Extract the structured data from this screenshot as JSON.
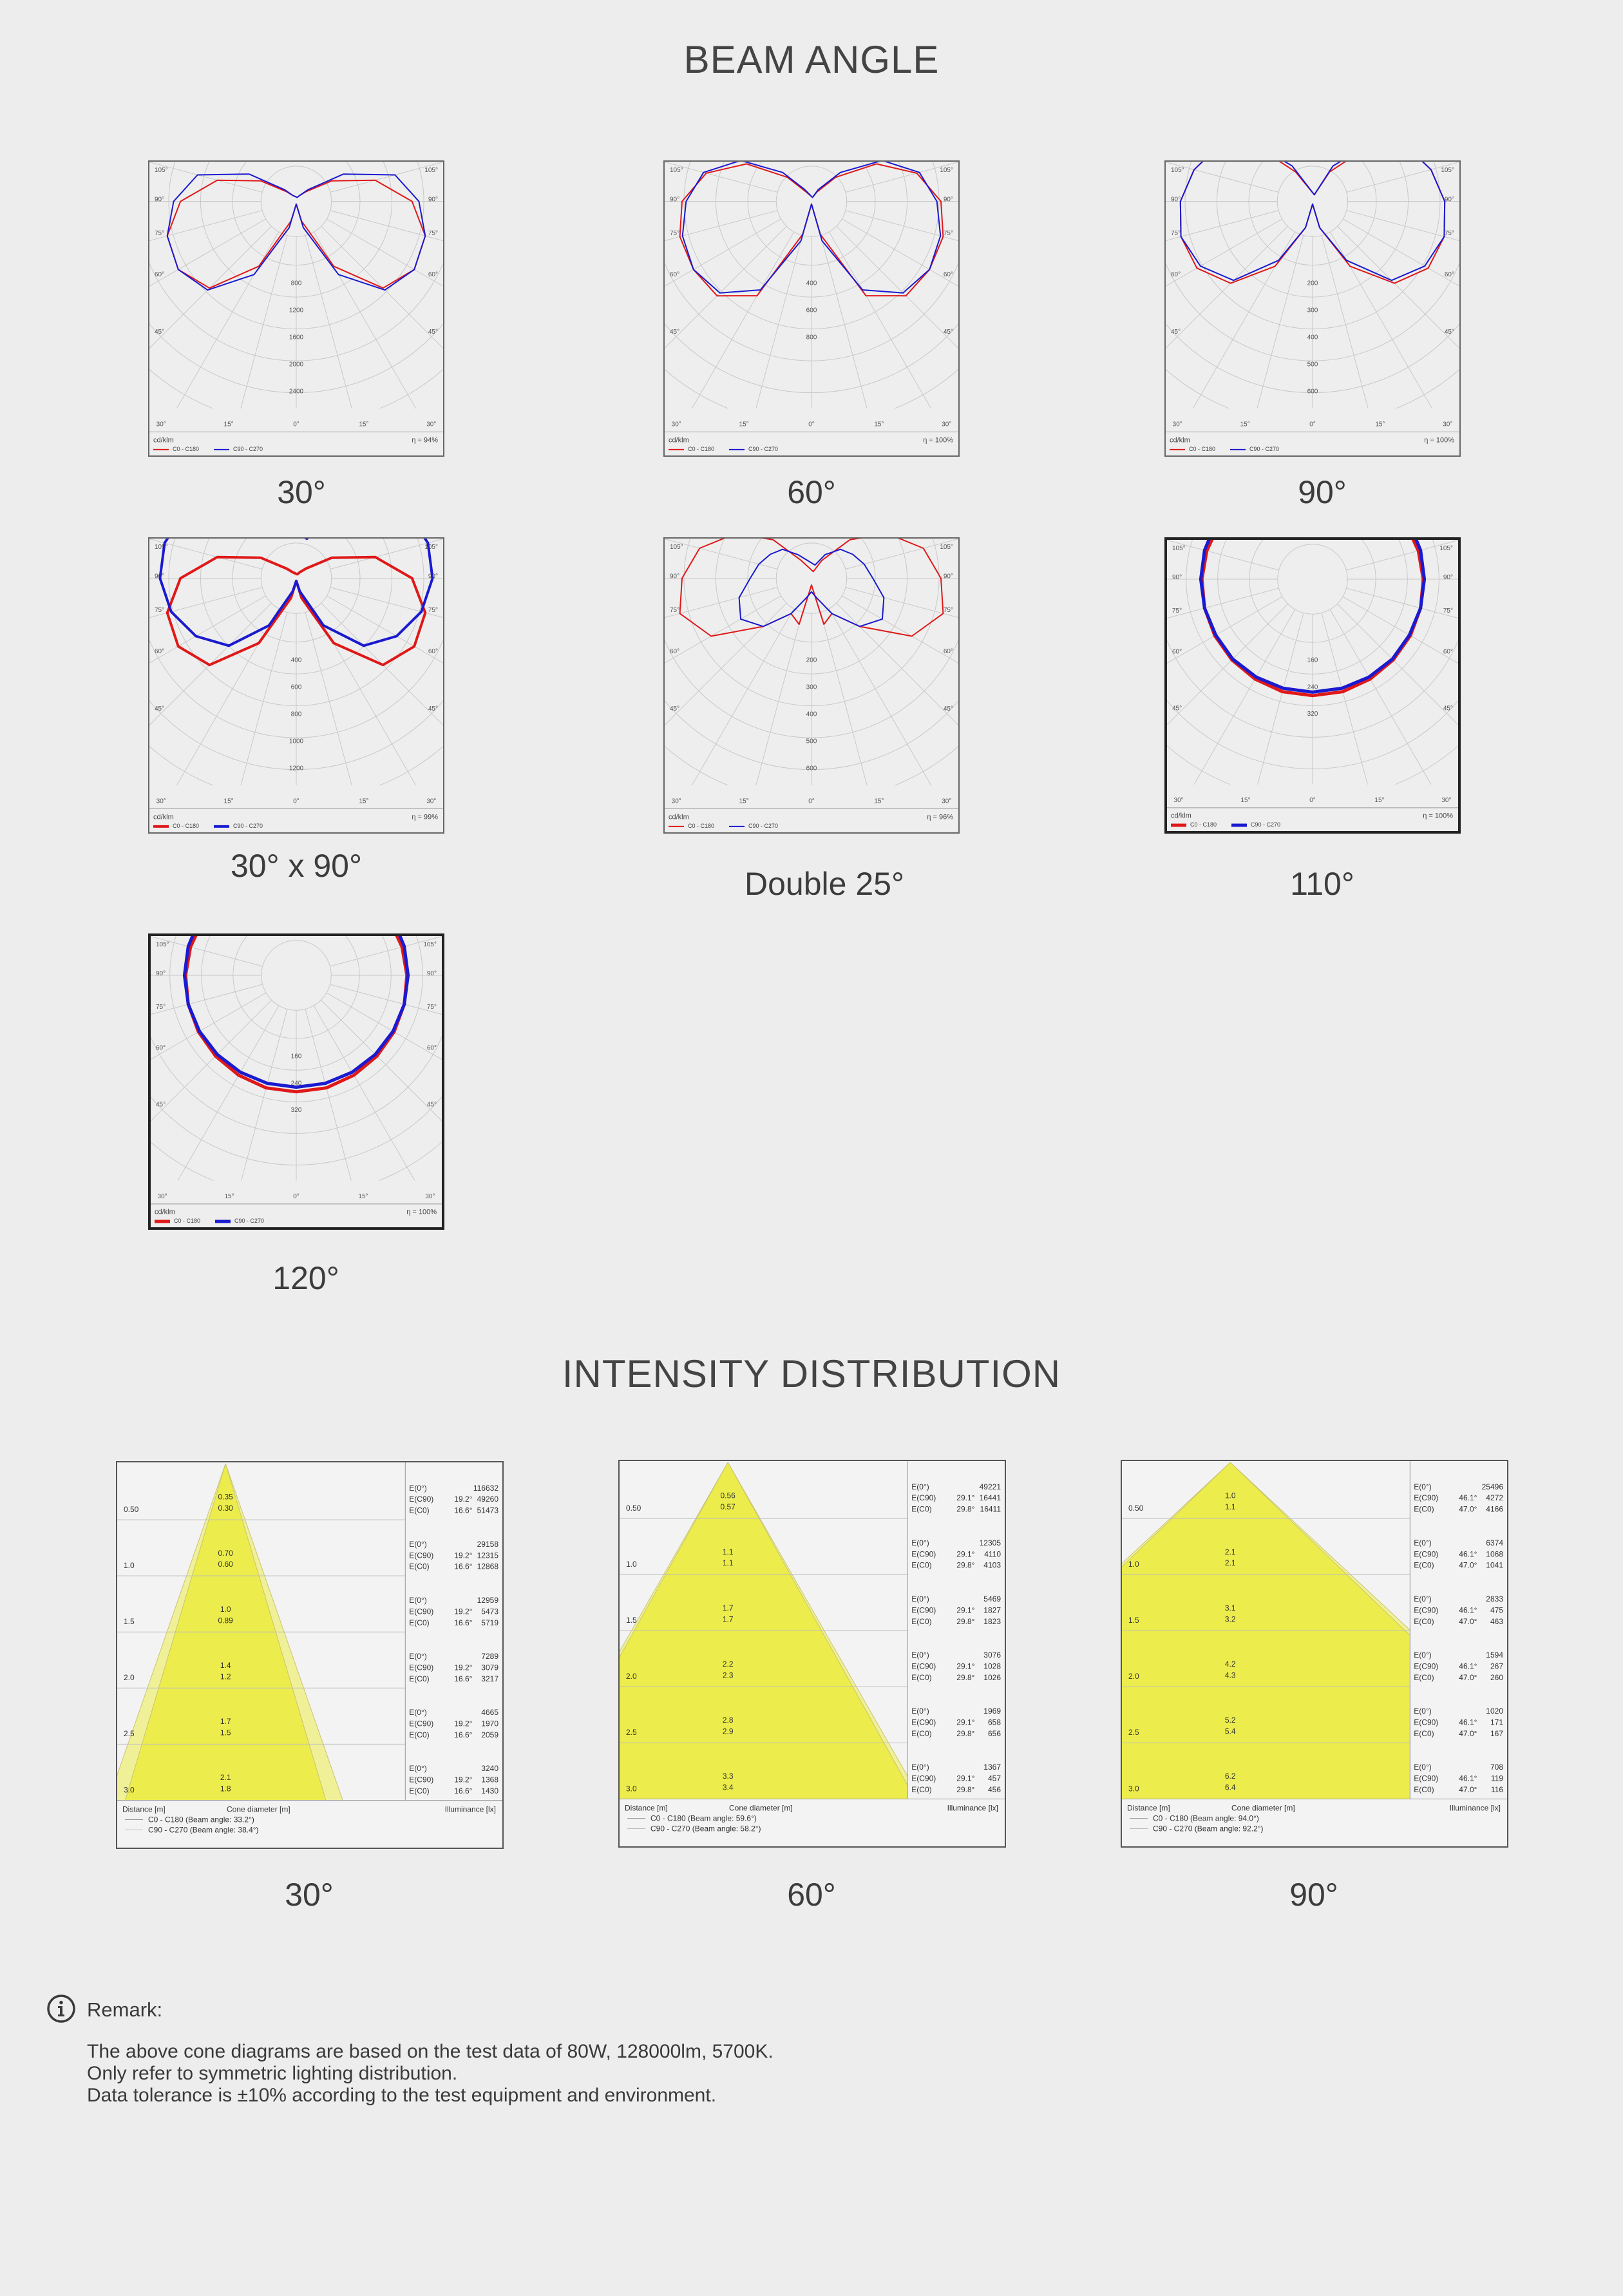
{
  "beam_heading": "BEAM ANGLE",
  "intensity_heading": "INTENSITY DISTRIBUTION",
  "colors": {
    "c0_c180": "#e01818",
    "c90_c270": "#1a1ad0",
    "cone_fill": "#ecec4c",
    "grid": "#c8c8c8"
  },
  "polar_common": {
    "unit": "cd/klm",
    "legend_c0": "C0 - C180",
    "legend_c90": "C90 - C270",
    "angle_labels": [
      "105°",
      "90°",
      "75°",
      "60°",
      "45°",
      "30°",
      "15°",
      "0°",
      "15°",
      "30°",
      "45°",
      "60°",
      "75°",
      "90°",
      "105°"
    ]
  },
  "polar_diagrams": [
    {
      "label": "30°",
      "efficiency": "η = 94%",
      "rings": [
        "800",
        "1200",
        "1600",
        "2000",
        "2400"
      ],
      "bold": false
    },
    {
      "label": "60°",
      "efficiency": "η = 100%",
      "rings": [
        "400",
        "600",
        "800"
      ],
      "bold": false
    },
    {
      "label": "90°",
      "efficiency": "η = 100%",
      "rings": [
        "200",
        "300",
        "400",
        "500",
        "600"
      ],
      "bold": false
    },
    {
      "label": "30° x 90°",
      "efficiency": "η = 99%",
      "rings": [
        "400",
        "600",
        "800",
        "1000",
        "1200"
      ],
      "bold": false
    },
    {
      "label": "Double 25°",
      "efficiency": "η = 96%",
      "rings": [
        "200",
        "300",
        "400",
        "500",
        "600"
      ],
      "bold": false
    },
    {
      "label": "110°",
      "efficiency": "η = 100%",
      "rings": [
        "160",
        "240",
        "320"
      ],
      "bold": true
    },
    {
      "label": "120°",
      "efficiency": "η = 100%",
      "rings": [
        "160",
        "240",
        "320"
      ],
      "bold": true
    }
  ],
  "cone_common": {
    "distance_header": "Distance [m]",
    "diameter_header": "Cone diameter [m]",
    "illuminance_header": "Illuminance [lx]",
    "row_distances": [
      "0.50",
      "1.0",
      "1.5",
      "2.0",
      "2.5",
      "3.0"
    ],
    "e_labels": [
      "E(0°)",
      "E(C90)",
      "E(C0)"
    ]
  },
  "cone_diagrams": [
    {
      "label": "30°",
      "legend_c0": "C0 - C180 (Beam angle: 33.2°)",
      "legend_c90": "C90 - C270 (Beam angle: 38.4°)",
      "half_angles": [
        16.6,
        19.2
      ],
      "rows": [
        {
          "d1": "0.35",
          "d2": "0.30",
          "e0": "116632",
          "a90": "19.2°",
          "e90": "49260",
          "a0": "16.6°",
          "ec0": "51473"
        },
        {
          "d1": "0.70",
          "d2": "0.60",
          "e0": "29158",
          "a90": "19.2°",
          "e90": "12315",
          "a0": "16.6°",
          "ec0": "12868"
        },
        {
          "d1": "1.0",
          "d2": "0.89",
          "e0": "12959",
          "a90": "19.2°",
          "e90": "5473",
          "a0": "16.6°",
          "ec0": "5719"
        },
        {
          "d1": "1.4",
          "d2": "1.2",
          "e0": "7289",
          "a90": "19.2°",
          "e90": "3079",
          "a0": "16.6°",
          "ec0": "3217"
        },
        {
          "d1": "1.7",
          "d2": "1.5",
          "e0": "4665",
          "a90": "19.2°",
          "e90": "1970",
          "a0": "16.6°",
          "ec0": "2059"
        },
        {
          "d1": "2.1",
          "d2": "1.8",
          "e0": "3240",
          "a90": "19.2°",
          "e90": "1368",
          "a0": "16.6°",
          "ec0": "1430"
        }
      ]
    },
    {
      "label": "60°",
      "legend_c0": "C0 - C180 (Beam angle: 59.6°)",
      "legend_c90": "C90 - C270 (Beam angle: 58.2°)",
      "half_angles": [
        29.8,
        29.1
      ],
      "rows": [
        {
          "d1": "0.56",
          "d2": "0.57",
          "e0": "49221",
          "a90": "29.1°",
          "e90": "16441",
          "a0": "29.8°",
          "ec0": "16411"
        },
        {
          "d1": "1.1",
          "d2": "1.1",
          "e0": "12305",
          "a90": "29.1°",
          "e90": "4110",
          "a0": "29.8°",
          "ec0": "4103"
        },
        {
          "d1": "1.7",
          "d2": "1.7",
          "e0": "5469",
          "a90": "29.1°",
          "e90": "1827",
          "a0": "29.8°",
          "ec0": "1823"
        },
        {
          "d1": "2.2",
          "d2": "2.3",
          "e0": "3076",
          "a90": "29.1°",
          "e90": "1028",
          "a0": "29.8°",
          "ec0": "1026"
        },
        {
          "d1": "2.8",
          "d2": "2.9",
          "e0": "1969",
          "a90": "29.1°",
          "e90": "658",
          "a0": "29.8°",
          "ec0": "656"
        },
        {
          "d1": "3.3",
          "d2": "3.4",
          "e0": "1367",
          "a90": "29.1°",
          "e90": "457",
          "a0": "29.8°",
          "ec0": "456"
        }
      ]
    },
    {
      "label": "90°",
      "legend_c0": "C0 - C180 (Beam angle: 94.0°)",
      "legend_c90": "C90 - C270 (Beam angle: 92.2°)",
      "half_angles": [
        47.0,
        46.1
      ],
      "rows": [
        {
          "d1": "1.0",
          "d2": "1.1",
          "e0": "25496",
          "a90": "46.1°",
          "e90": "4272",
          "a0": "47.0°",
          "ec0": "4166"
        },
        {
          "d1": "2.1",
          "d2": "2.1",
          "e0": "6374",
          "a90": "46.1°",
          "e90": "1068",
          "a0": "47.0°",
          "ec0": "1041"
        },
        {
          "d1": "3.1",
          "d2": "3.2",
          "e0": "2833",
          "a90": "46.1°",
          "e90": "475",
          "a0": "47.0°",
          "ec0": "463"
        },
        {
          "d1": "4.2",
          "d2": "4.3",
          "e0": "1594",
          "a90": "46.1°",
          "e90": "267",
          "a0": "47.0°",
          "ec0": "260"
        },
        {
          "d1": "5.2",
          "d2": "5.4",
          "e0": "1020",
          "a90": "46.1°",
          "e90": "171",
          "a0": "47.0°",
          "ec0": "167"
        },
        {
          "d1": "6.2",
          "d2": "6.4",
          "e0": "708",
          "a90": "46.1°",
          "e90": "119",
          "a0": "47.0°",
          "ec0": "116"
        }
      ]
    }
  ],
  "remark": {
    "icon": "info-icon",
    "title": "Remark:",
    "lines": [
      "The above cone diagrams are based on the test data of 80W, 128000lm, 5700K.",
      "Only refer to symmetric lighting distribution.",
      "Data tolerance is ±10% according to the test equipment and environment."
    ]
  }
}
